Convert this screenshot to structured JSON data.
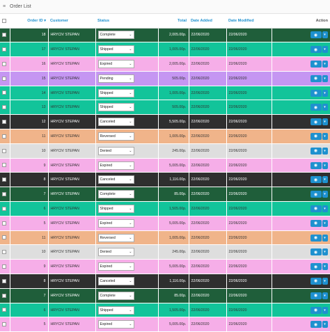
{
  "header": {
    "title": "Order List",
    "list_icon": "≡"
  },
  "columns": {
    "order_id": "Order ID",
    "customer": "Customer",
    "status": "Status",
    "total": "Total",
    "date_added": "Date Added",
    "date_modified": "Date Modified",
    "action": "Action"
  },
  "colors": {
    "complete": "#1f5e3a",
    "shipped": "#12c49a",
    "expired": "#f6aee8",
    "pending": "#c596f2",
    "canceled": "#2f2f2f",
    "reversed": "#f0b48a",
    "denied": "#dedede",
    "button": "#1e91cf"
  },
  "rows": [
    {
      "id": "18",
      "customer": "HRYCIV STEPAN",
      "status": "Complete",
      "total": "2,005.00р.",
      "added": "22/06/2020",
      "modified": "22/06/2020",
      "tone": "complete"
    },
    {
      "id": "17",
      "customer": "HRYCIV STEPAN",
      "status": "Shipped",
      "total": "1,005.00р.",
      "added": "22/06/2020",
      "modified": "22/06/2020",
      "tone": "shipped"
    },
    {
      "id": "16",
      "customer": "HRYCIV STEPAN",
      "status": "Expired",
      "total": "2,005.00р.",
      "added": "22/06/2020",
      "modified": "22/06/2020",
      "tone": "expired"
    },
    {
      "id": "15",
      "customer": "HRYCIV STEPAN",
      "status": "Pending",
      "total": "505.00р.",
      "added": "22/06/2020",
      "modified": "22/06/2020",
      "tone": "pending"
    },
    {
      "id": "14",
      "customer": "HRYCIV STEPAN",
      "status": "Shipped",
      "total": "1,005.00р.",
      "added": "22/06/2020",
      "modified": "22/06/2020",
      "tone": "shipped"
    },
    {
      "id": "13",
      "customer": "HRYCIV STEPAN",
      "status": "Shipped",
      "total": "505.00р.",
      "added": "22/06/2020",
      "modified": "22/06/2020",
      "tone": "shipped"
    },
    {
      "id": "12",
      "customer": "HRYCIV STEPAN",
      "status": "Canceled",
      "total": "5,505.00р.",
      "added": "22/06/2020",
      "modified": "22/06/2020",
      "tone": "canceled"
    },
    {
      "id": "11",
      "customer": "HRYCIV STEPAN",
      "status": "Reversed",
      "total": "1,005.00р.",
      "added": "22/06/2020",
      "modified": "22/06/2020",
      "tone": "reversed"
    },
    {
      "id": "10",
      "customer": "HRYCIV STEPAN",
      "status": "Denied",
      "total": "245.00р.",
      "added": "22/06/2020",
      "modified": "22/06/2020",
      "tone": "denied"
    },
    {
      "id": "9",
      "customer": "HRYCIV STEPAN",
      "status": "Expired",
      "total": "5,005.00р.",
      "added": "22/06/2020",
      "modified": "22/06/2020",
      "tone": "expired"
    },
    {
      "id": "8",
      "customer": "HRYCIV STEPAN",
      "status": "Canceled",
      "total": "1,116.00р.",
      "added": "22/06/2020",
      "modified": "22/06/2020",
      "tone": "canceled"
    },
    {
      "id": "7",
      "customer": "HRYCIV STEPAN",
      "status": "Complete",
      "total": "85.00р.",
      "added": "22/06/2020",
      "modified": "22/06/2020",
      "tone": "complete"
    },
    {
      "id": "6",
      "customer": "HRYCIV STEPAN",
      "status": "Shipped",
      "total": "1,505.00р.",
      "added": "22/06/2020",
      "modified": "22/06/2020",
      "tone": "shipped"
    },
    {
      "id": "5",
      "customer": "HRYCIV STEPAN",
      "status": "Expired",
      "total": "5,005.00р.",
      "added": "22/06/2020",
      "modified": "22/06/2020",
      "tone": "expired"
    },
    {
      "id": "11",
      "customer": "HRYCIV STEPAN",
      "status": "Reversed",
      "total": "1,005.00р.",
      "added": "22/06/2020",
      "modified": "22/06/2020",
      "tone": "reversed"
    },
    {
      "id": "10",
      "customer": "HRYCIV STEPAN",
      "status": "Denied",
      "total": "245.00р.",
      "added": "22/06/2020",
      "modified": "22/06/2020",
      "tone": "denied"
    },
    {
      "id": "9",
      "customer": "HRYCIV STEPAN",
      "status": "Expired",
      "total": "5,005.00р.",
      "added": "22/06/2020",
      "modified": "22/06/2020",
      "tone": "expired"
    },
    {
      "id": "8",
      "customer": "HRYCIV STEPAN",
      "status": "Canceled",
      "total": "1,116.00р.",
      "added": "22/06/2020",
      "modified": "22/06/2020",
      "tone": "canceled"
    },
    {
      "id": "7",
      "customer": "HRYCIV STEPAN",
      "status": "Complete",
      "total": "85.00р.",
      "added": "22/06/2020",
      "modified": "22/06/2020",
      "tone": "complete"
    },
    {
      "id": "6",
      "customer": "HRYCIV STEPAN",
      "status": "Shipped",
      "total": "1,505.00р.",
      "added": "22/06/2020",
      "modified": "22/06/2020",
      "tone": "shipped"
    },
    {
      "id": "5",
      "customer": "HRYCIV STEPAN",
      "status": "Expired",
      "total": "5,005.00р.",
      "added": "22/06/2020",
      "modified": "22/06/2020",
      "tone": "expired"
    }
  ]
}
